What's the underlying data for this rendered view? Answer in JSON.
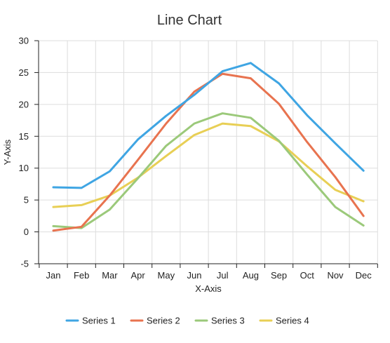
{
  "chart_data": {
    "type": "line",
    "title": "Line Chart",
    "xlabel": "X-Axis",
    "ylabel": "Y-Axis",
    "categories": [
      "Jan",
      "Feb",
      "Mar",
      "Apr",
      "May",
      "Jun",
      "Jul",
      "Aug",
      "Sep",
      "Oct",
      "Nov",
      "Dec"
    ],
    "ylim": [
      -5,
      30
    ],
    "yticks": [
      -5,
      0,
      5,
      10,
      15,
      20,
      25,
      30
    ],
    "grid": true,
    "legend_position": "bottom",
    "series": [
      {
        "name": "Series 1",
        "color": "#3fa5e3",
        "values": [
          7.0,
          6.9,
          9.5,
          14.5,
          18.2,
          21.5,
          25.2,
          26.5,
          23.3,
          18.3,
          13.9,
          9.6
        ]
      },
      {
        "name": "Series 2",
        "color": "#e8734f",
        "values": [
          0.2,
          0.8,
          5.7,
          11.3,
          17.0,
          22.0,
          24.8,
          24.1,
          20.1,
          14.1,
          8.6,
          2.5
        ]
      },
      {
        "name": "Series 3",
        "color": "#9bc97a",
        "values": [
          0.9,
          0.6,
          3.5,
          8.4,
          13.5,
          17.0,
          18.6,
          17.9,
          14.3,
          9.0,
          3.9,
          1.0
        ]
      },
      {
        "name": "Series 4",
        "color": "#e8cf55",
        "values": [
          3.9,
          4.2,
          5.7,
          8.5,
          11.9,
          15.2,
          17.0,
          16.6,
          14.2,
          10.3,
          6.6,
          4.8
        ]
      }
    ]
  }
}
